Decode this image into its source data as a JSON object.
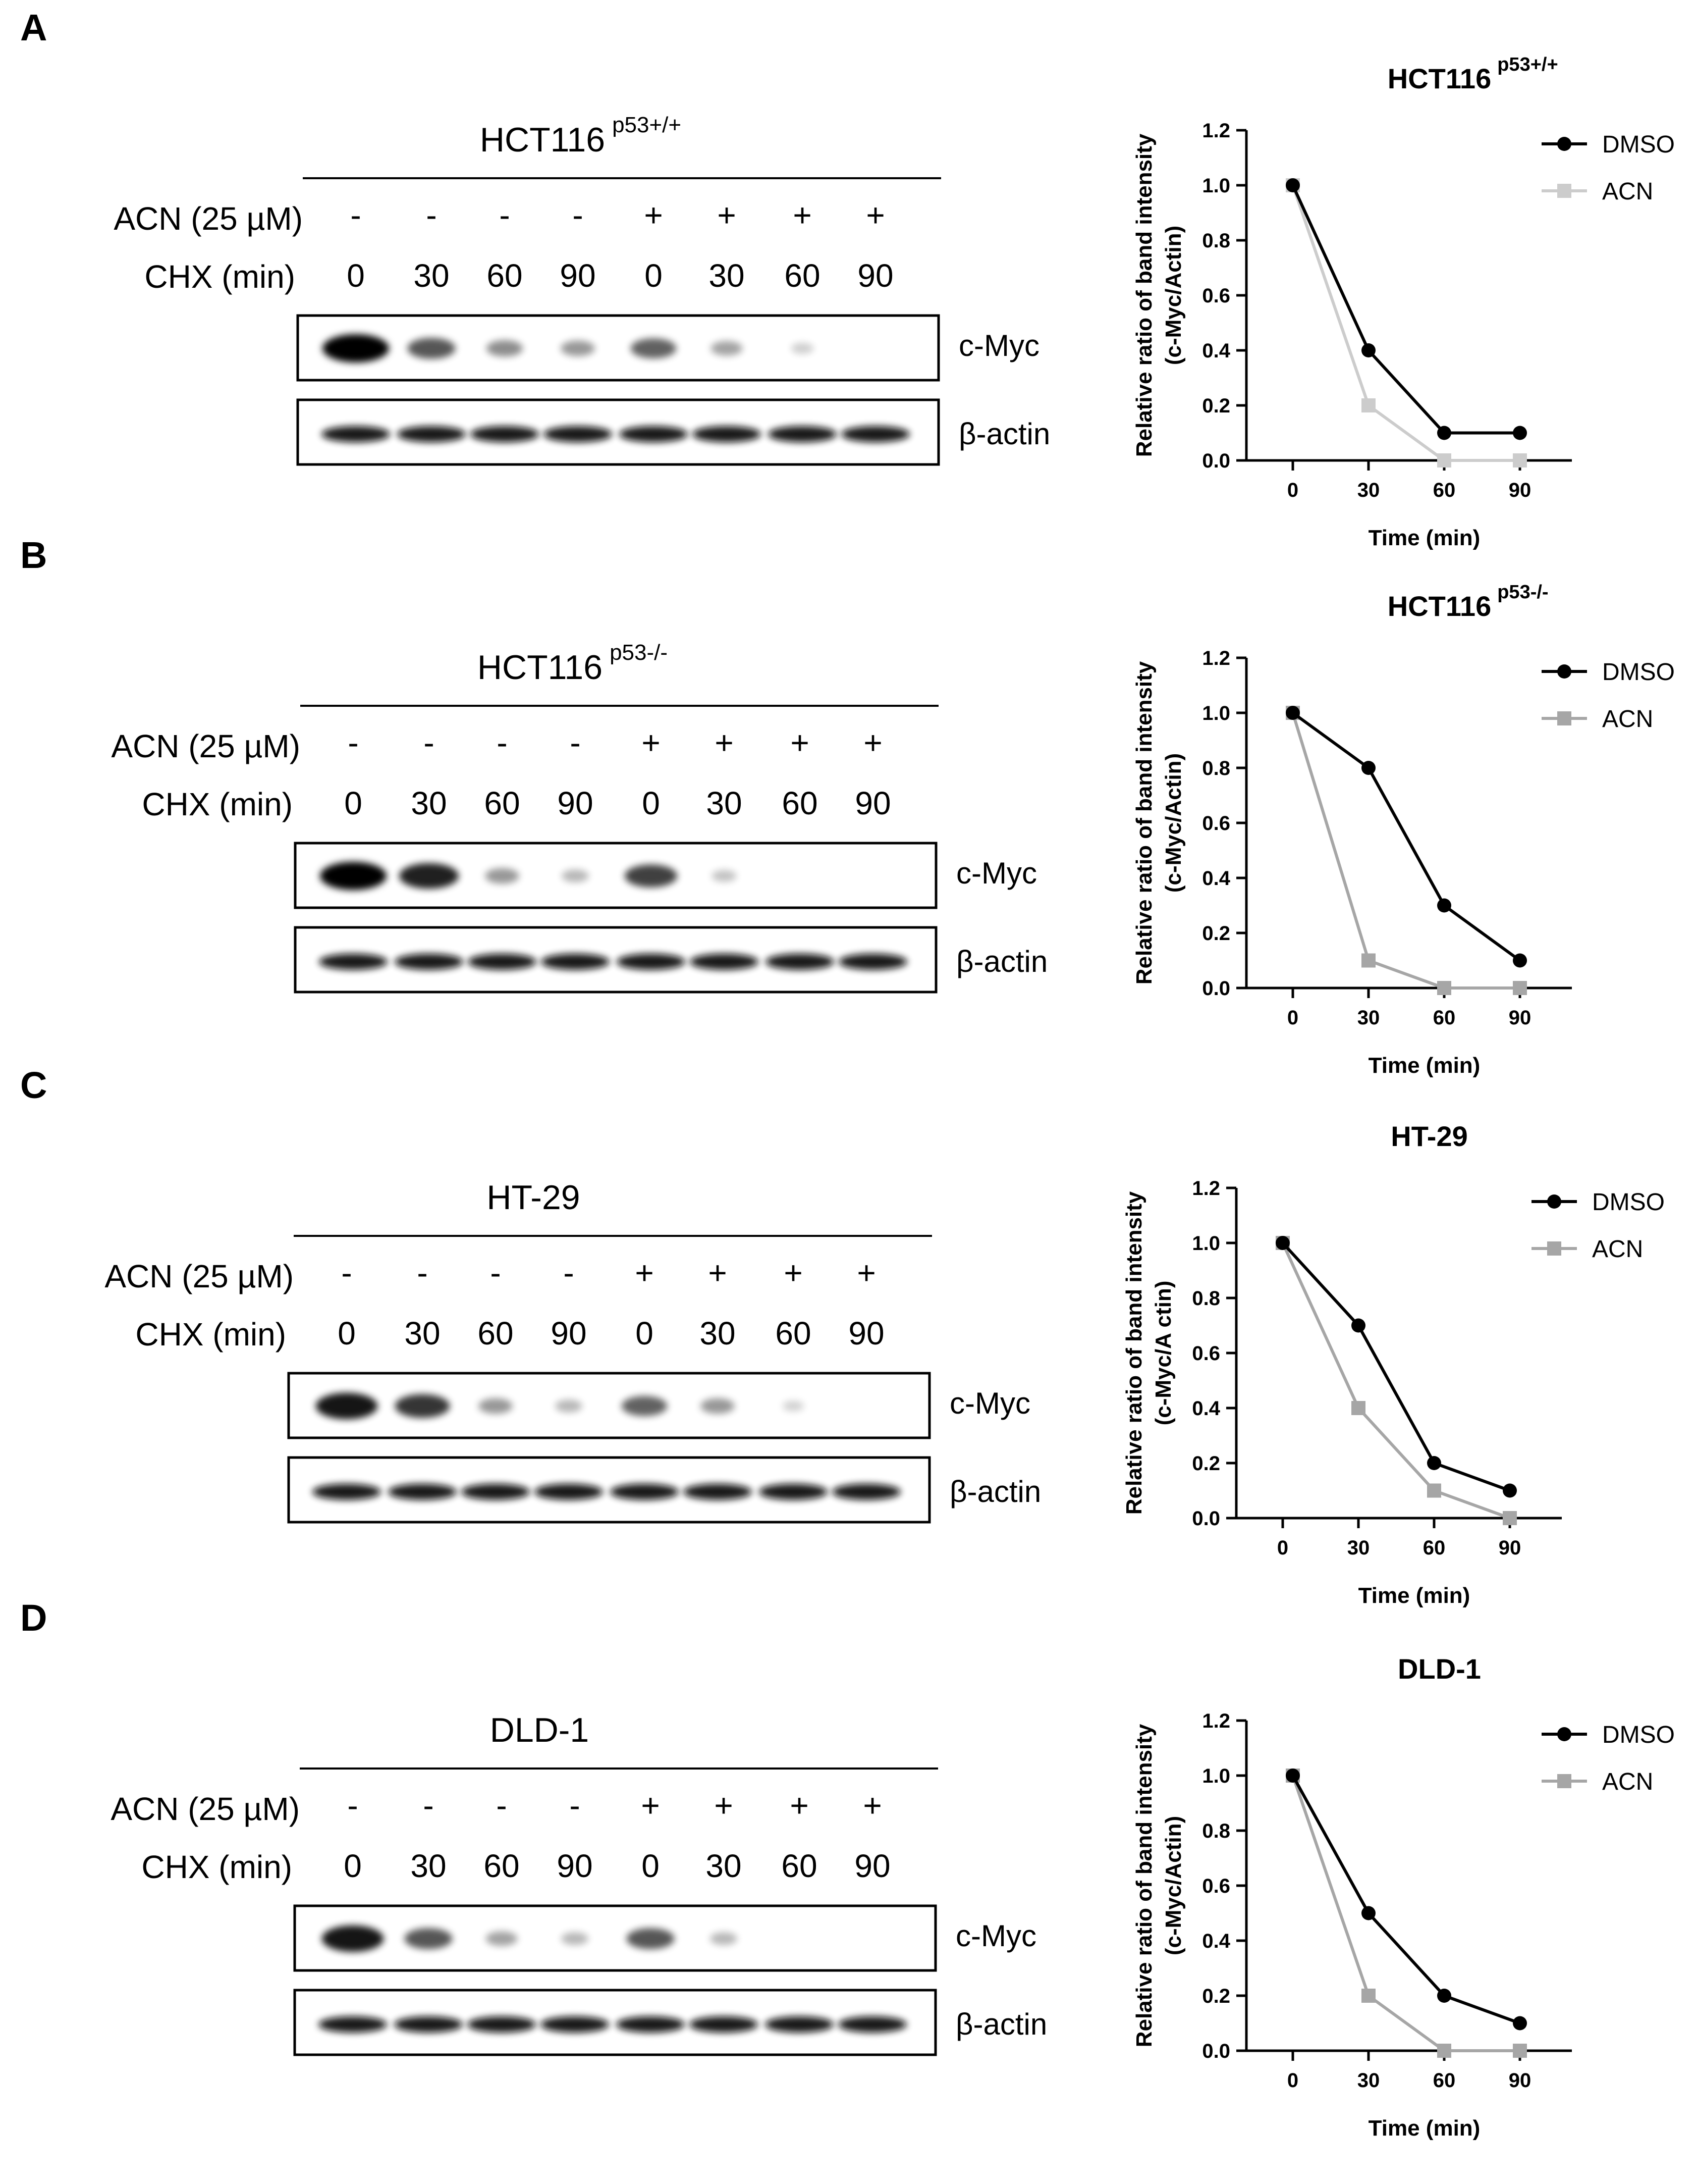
{
  "colors": {
    "dmso": "#000000",
    "acn_a": "#cccccc",
    "acn": "#a6a6a6",
    "axis": "#000000"
  },
  "blot_common": {
    "acn_label": "ACN (25 µM)",
    "chx_label": "CHX (min)",
    "acn_signs": [
      "-",
      "-",
      "-",
      "-",
      "+",
      "+",
      "+",
      "+"
    ],
    "chx_times": [
      "0",
      "30",
      "60",
      "90",
      "0",
      "30",
      "60",
      "90"
    ],
    "band_labels": [
      "c-Myc",
      "β-actin"
    ]
  },
  "panels": [
    {
      "letter": "A",
      "cell_line": "HCT116",
      "superscript": "p53+/+",
      "cmyc_intensity": [
        1.0,
        0.6,
        0.35,
        0.3,
        0.55,
        0.25,
        0.05,
        0.0
      ]
    },
    {
      "letter": "B",
      "cell_line": "HCT116",
      "superscript": "p53-/-",
      "cmyc_intensity": [
        1.0,
        0.85,
        0.3,
        0.15,
        0.7,
        0.1,
        0.0,
        0.0
      ]
    },
    {
      "letter": "C",
      "cell_line": "HT-29",
      "superscript": "",
      "cmyc_intensity": [
        0.9,
        0.75,
        0.3,
        0.15,
        0.55,
        0.3,
        0.03,
        0.0
      ]
    },
    {
      "letter": "D",
      "cell_line": "DLD-1",
      "superscript": "",
      "cmyc_intensity": [
        0.9,
        0.6,
        0.25,
        0.15,
        0.6,
        0.15,
        0.0,
        0.0
      ]
    }
  ],
  "chart_data": [
    {
      "type": "line",
      "title": "HCT116",
      "title_sup": "p53+/+",
      "xlabel": "Time (min)",
      "ylabel": "Relative ratio of band intensity",
      "ylabel2": "(c-Myc/Actin)",
      "x": [
        0,
        30,
        60,
        90
      ],
      "ylim": [
        0,
        1.2
      ],
      "yticks": [
        0.0,
        0.2,
        0.4,
        0.6,
        0.8,
        1.0,
        1.2
      ],
      "legend_position": "top-right",
      "series": [
        {
          "name": "DMSO",
          "values": [
            1.0,
            0.4,
            0.1,
            0.1
          ],
          "marker": "circle",
          "color": "#000000"
        },
        {
          "name": "ACN",
          "values": [
            1.0,
            0.2,
            0.0,
            0.0
          ],
          "marker": "square",
          "color": "#cccccc"
        }
      ]
    },
    {
      "type": "line",
      "title": "HCT116",
      "title_sup": "p53-/-",
      "xlabel": "Time (min)",
      "ylabel": "Relative ratio of band intensity",
      "ylabel2": "(c-Myc/Actin)",
      "x": [
        0,
        30,
        60,
        90
      ],
      "ylim": [
        0,
        1.2
      ],
      "yticks": [
        0.0,
        0.2,
        0.4,
        0.6,
        0.8,
        1.0,
        1.2
      ],
      "legend_position": "top-right",
      "series": [
        {
          "name": "DMSO",
          "values": [
            1.0,
            0.8,
            0.3,
            0.1
          ],
          "marker": "circle",
          "color": "#000000"
        },
        {
          "name": "ACN",
          "values": [
            1.0,
            0.1,
            0.0,
            0.0
          ],
          "marker": "square",
          "color": "#a6a6a6"
        }
      ]
    },
    {
      "type": "line",
      "title": "HT-29",
      "title_sup": "",
      "xlabel": "Time (min)",
      "ylabel": "Relative ratio of band intensity",
      "ylabel2": "(c-Myc/A ctin)",
      "x": [
        0,
        30,
        60,
        90
      ],
      "ylim": [
        0,
        1.2
      ],
      "yticks": [
        0.0,
        0.2,
        0.4,
        0.6,
        0.8,
        1.0,
        1.2
      ],
      "legend_position": "top-right",
      "series": [
        {
          "name": "DMSO",
          "values": [
            1.0,
            0.7,
            0.2,
            0.1
          ],
          "marker": "circle",
          "color": "#000000"
        },
        {
          "name": "ACN",
          "values": [
            1.0,
            0.4,
            0.1,
            0.0
          ],
          "marker": "square",
          "color": "#a6a6a6"
        }
      ]
    },
    {
      "type": "line",
      "title": "DLD-1",
      "title_sup": "",
      "xlabel": "Time (min)",
      "ylabel": "Relative ratio of band intensity",
      "ylabel2": "(c-Myc/Actin)",
      "x": [
        0,
        30,
        60,
        90
      ],
      "ylim": [
        0,
        1.2
      ],
      "yticks": [
        0.0,
        0.2,
        0.4,
        0.6,
        0.8,
        1.0,
        1.2
      ],
      "legend_position": "top-right",
      "series": [
        {
          "name": "DMSO",
          "values": [
            1.0,
            0.5,
            0.2,
            0.1
          ],
          "marker": "circle",
          "color": "#000000"
        },
        {
          "name": "ACN",
          "values": [
            1.0,
            0.2,
            0.0,
            0.0
          ],
          "marker": "square",
          "color": "#a6a6a6"
        }
      ]
    }
  ]
}
